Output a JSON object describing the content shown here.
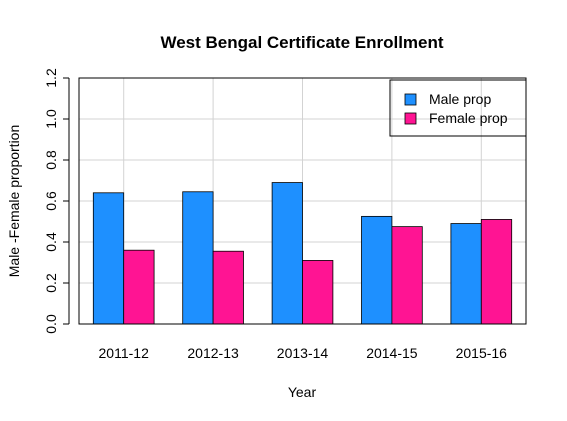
{
  "chart_data": {
    "type": "bar",
    "title": "West Bengal Certificate Enrollment",
    "xlabel": "Year",
    "ylabel": "Male -Female proportion",
    "categories": [
      "2011-12",
      "2012-13",
      "2013-14",
      "2014-15",
      "2015-16"
    ],
    "series": [
      {
        "name": "Male prop",
        "color": "#1E90FF",
        "values": [
          0.64,
          0.645,
          0.69,
          0.525,
          0.49
        ]
      },
      {
        "name": "Female prop",
        "color": "#FF1493",
        "values": [
          0.36,
          0.355,
          0.31,
          0.475,
          0.51
        ]
      }
    ],
    "ylim": [
      0,
      1.2
    ],
    "yticks": [
      "0.0",
      "0.2",
      "0.4",
      "0.6",
      "0.8",
      "1.0",
      "1.2"
    ],
    "grid": true,
    "legend_position": "top-right"
  }
}
